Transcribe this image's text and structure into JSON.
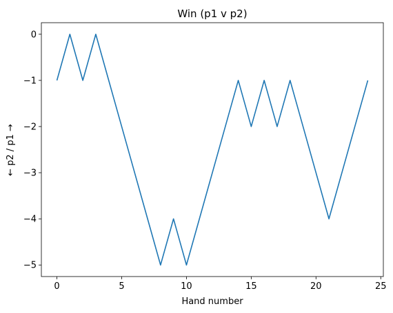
{
  "chart_data": {
    "type": "line",
    "title": "Win (p1 v p2)",
    "xlabel": "Hand number",
    "ylabel": "← p2 / p1 →",
    "xlim": [
      -1.2,
      25.2
    ],
    "ylim": [
      -5.25,
      0.25
    ],
    "xticks": [
      0,
      5,
      10,
      15,
      20,
      25
    ],
    "xtick_labels": [
      "0",
      "5",
      "10",
      "15",
      "20",
      "25"
    ],
    "yticks": [
      0,
      -1,
      -2,
      -3,
      -4,
      -5
    ],
    "ytick_labels": [
      "0",
      "−1",
      "−2",
      "−3",
      "−4",
      "−5"
    ],
    "grid": false,
    "series": [
      {
        "color": "#1f77b4",
        "x": [
          0,
          1,
          2,
          3,
          4,
          5,
          6,
          7,
          8,
          9,
          10,
          11,
          12,
          13,
          14,
          15,
          16,
          17,
          18,
          19,
          20,
          21,
          22,
          23,
          24
        ],
        "values": [
          -1,
          0,
          -1,
          0,
          -1,
          -2,
          -3,
          -4,
          -5,
          -4,
          -5,
          -4,
          -3,
          -2,
          -1,
          -2,
          -1,
          -2,
          -1,
          -2,
          -3,
          -4,
          -3,
          -2,
          -1
        ]
      }
    ]
  }
}
